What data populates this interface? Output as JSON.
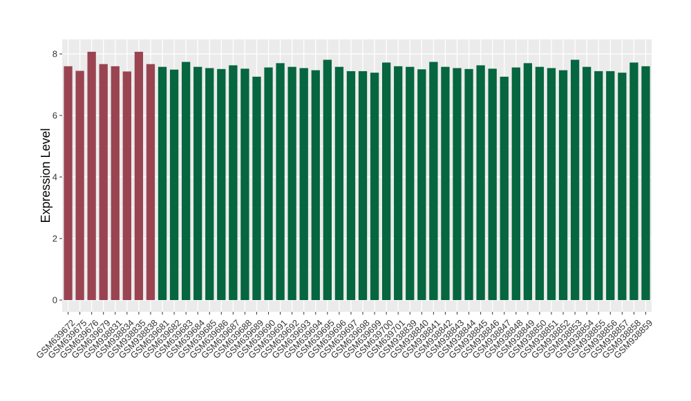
{
  "chart_data": {
    "type": "bar",
    "ylabel": "Expression Level",
    "xlabel": "",
    "title": "",
    "ylim": [
      0,
      8.3
    ],
    "yticks": [
      0,
      2,
      4,
      6,
      8
    ],
    "grid": true,
    "legend": "none",
    "colors": {
      "group_a": "#9A4452",
      "group_b": "#05663F",
      "panel_bg": "#EBEBEB",
      "grid": "#FFFFFF"
    },
    "categories": [
      "GSM639672",
      "GSM639675",
      "GSM639676",
      "GSM639679",
      "GSM938831",
      "GSM938834",
      "GSM938835",
      "GSM938838",
      "GSM639681",
      "GSM639682",
      "GSM639683",
      "GSM639684",
      "GSM639685",
      "GSM639686",
      "GSM639687",
      "GSM639688",
      "GSM639689",
      "GSM639690",
      "GSM639691",
      "GSM639692",
      "GSM639693",
      "GSM639694",
      "GSM639695",
      "GSM639696",
      "GSM639697",
      "GSM639698",
      "GSM639699",
      "GSM639700",
      "GSM639701",
      "GSM938839",
      "GSM938840",
      "GSM938841",
      "GSM938842",
      "GSM938843",
      "GSM938844",
      "GSM938845",
      "GSM938846",
      "GSM938847",
      "GSM938848",
      "GSM938849",
      "GSM938850",
      "GSM938851",
      "GSM938852",
      "GSM938853",
      "GSM938854",
      "GSM938855",
      "GSM938856",
      "GSM938857",
      "GSM938858",
      "GSM938859"
    ],
    "values": [
      7.6,
      7.45,
      8.07,
      7.67,
      7.6,
      7.43,
      8.07,
      7.67,
      7.58,
      7.49,
      7.74,
      7.58,
      7.54,
      7.51,
      7.63,
      7.52,
      7.26,
      7.56,
      7.7,
      7.58,
      7.54,
      7.47,
      7.81,
      7.58,
      7.44,
      7.44,
      7.39,
      7.72,
      7.6,
      7.58,
      7.5,
      7.74,
      7.58,
      7.54,
      7.51,
      7.63,
      7.52,
      7.26,
      7.56,
      7.7,
      7.58,
      7.54,
      7.47,
      7.81,
      7.58,
      7.44,
      7.44,
      7.39,
      7.72,
      7.6
    ],
    "groups": [
      "a",
      "a",
      "a",
      "a",
      "a",
      "a",
      "a",
      "a",
      "b",
      "b",
      "b",
      "b",
      "b",
      "b",
      "b",
      "b",
      "b",
      "b",
      "b",
      "b",
      "b",
      "b",
      "b",
      "b",
      "b",
      "b",
      "b",
      "b",
      "b",
      "b",
      "b",
      "b",
      "b",
      "b",
      "b",
      "b",
      "b",
      "b",
      "b",
      "b",
      "b",
      "b",
      "b",
      "b",
      "b",
      "b",
      "b",
      "b",
      "b",
      "b"
    ]
  }
}
